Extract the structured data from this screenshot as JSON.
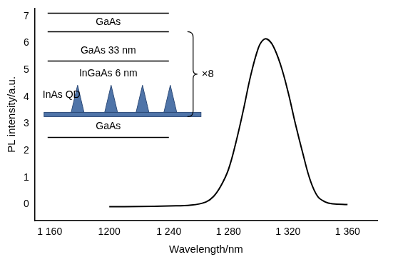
{
  "chart_data": {
    "type": "line",
    "xlabel": "Wavelength/nm",
    "ylabel": "PL intensity/a.u.",
    "x": [
      1200,
      1220,
      1240,
      1255,
      1265,
      1270,
      1275,
      1280,
      1285,
      1290,
      1295,
      1300,
      1303,
      1306,
      1310,
      1315,
      1320,
      1325,
      1330,
      1335,
      1340,
      1345,
      1350,
      1360
    ],
    "values": [
      -0.08,
      -0.07,
      -0.05,
      -0.02,
      0.1,
      0.3,
      0.7,
      1.3,
      2.3,
      3.5,
      4.8,
      5.8,
      6.1,
      6.15,
      5.9,
      5.2,
      4.2,
      3.0,
      1.9,
      0.9,
      0.3,
      0.1,
      0.03,
      0.0
    ],
    "color": "#000000",
    "xlim": [
      1150,
      1380
    ],
    "ylim": [
      -0.6,
      7.3
    ],
    "xticks": [
      {
        "value": 1160,
        "label": "1 160"
      },
      1200,
      {
        "value": 1240,
        "label": "1 240"
      },
      {
        "value": 1280,
        "label": "1 280"
      },
      {
        "value": 1320,
        "label": "1 320"
      },
      {
        "value": 1360,
        "label": "1 360"
      }
    ],
    "yticks": [
      0,
      1,
      2,
      3,
      4,
      5,
      6,
      7
    ],
    "grid": false,
    "inset": {
      "layers": [
        "GaAs",
        "GaAs 33 nm",
        "InGaAs 6 nm",
        "InAs QD",
        "GaAs"
      ],
      "repeat_label": "×8"
    }
  }
}
